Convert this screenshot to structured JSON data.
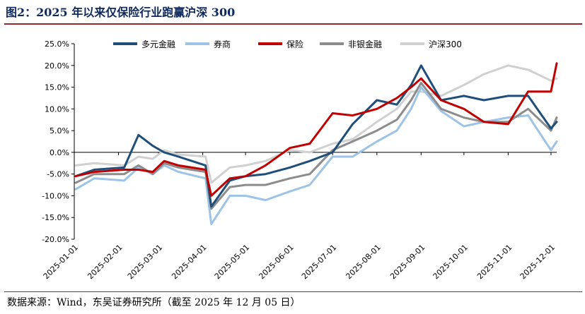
{
  "header": {
    "title": "图2：2025 年以来仅保险行业跑赢沪深 300"
  },
  "footer": {
    "source": "数据来源：Wind，东吴证券研究所（截至 2025 年 12 月 05 日）"
  },
  "chart_data": {
    "type": "line",
    "ylim": [
      -20,
      25
    ],
    "yticks": [
      25,
      20,
      15,
      10,
      5,
      0,
      -5,
      -10,
      -15,
      -20
    ],
    "ytick_labels": [
      "25.0%",
      "20.0%",
      "15.0%",
      "10.0%",
      "5.0%",
      "0.0%",
      "-5.0%",
      "-10.0%",
      "-15.0%",
      "-20.0%"
    ],
    "xtick_labels": [
      "2025-01-01",
      "2025-02-01",
      "2025-03-01",
      "2025-04-01",
      "2025-05-01",
      "2025-06-01",
      "2025-07-01",
      "2025-08-01",
      "2025-09-01",
      "2025-10-01",
      "2025-11-01",
      "2025-12-01"
    ],
    "x_range": [
      "2025-01-01",
      "2025-12-05"
    ],
    "x": [
      "2025-01-02",
      "2025-01-15",
      "2025-02-05",
      "2025-02-15",
      "2025-02-25",
      "2025-03-05",
      "2025-03-15",
      "2025-04-03",
      "2025-04-07",
      "2025-04-20",
      "2025-05-01",
      "2025-05-15",
      "2025-06-01",
      "2025-06-15",
      "2025-07-01",
      "2025-07-15",
      "2025-08-01",
      "2025-08-15",
      "2025-08-25",
      "2025-09-01",
      "2025-09-15",
      "2025-10-01",
      "2025-10-15",
      "2025-11-01",
      "2025-11-15",
      "2025-12-01",
      "2025-12-05"
    ],
    "grid": false,
    "legend_position": "top",
    "series": [
      {
        "name": "多元金融",
        "color": "#1f4e79",
        "values": [
          -5.5,
          -4.0,
          -3.5,
          4.0,
          1.5,
          0.0,
          -1.0,
          -3.0,
          -12.5,
          -6.5,
          -5.5,
          -5.0,
          -3.5,
          -2.0,
          0.0,
          6.5,
          12.0,
          11.0,
          15.5,
          20.0,
          12.0,
          13.0,
          12.0,
          13.0,
          13.0,
          5.5,
          7.0
        ]
      },
      {
        "name": "券商",
        "color": "#9dc3e6",
        "values": [
          -8.5,
          -6.0,
          -6.5,
          -3.5,
          -5.0,
          -3.0,
          -4.5,
          -6.0,
          -16.5,
          -10.0,
          -10.0,
          -11.0,
          -9.0,
          -7.5,
          -1.0,
          -1.0,
          2.5,
          5.0,
          10.0,
          15.0,
          9.5,
          6.0,
          7.0,
          8.0,
          8.5,
          0.5,
          2.5
        ]
      },
      {
        "name": "保险",
        "color": "#c00000",
        "values": [
          -5.5,
          -4.5,
          -4.0,
          -4.0,
          -4.5,
          -2.0,
          -3.0,
          -4.0,
          -10.0,
          -6.0,
          -5.5,
          -3.0,
          1.0,
          2.0,
          9.0,
          8.5,
          10.0,
          12.5,
          15.0,
          17.0,
          12.0,
          10.0,
          7.0,
          6.5,
          14.0,
          14.0,
          20.5
        ]
      },
      {
        "name": "非银金融",
        "color": "#8c8c8c",
        "values": [
          -7.0,
          -5.0,
          -5.0,
          -3.0,
          -5.0,
          -2.5,
          -3.5,
          -4.5,
          -13.0,
          -8.0,
          -7.5,
          -7.5,
          -6.0,
          -5.0,
          0.5,
          2.5,
          5.0,
          7.5,
          12.0,
          16.0,
          10.0,
          8.0,
          7.0,
          7.0,
          10.0,
          5.0,
          8.0
        ]
      },
      {
        "name": "沪深300",
        "color": "#d0d0d0",
        "values": [
          -3.0,
          -2.5,
          -3.0,
          -1.0,
          -1.5,
          0.5,
          -0.5,
          -1.0,
          -7.0,
          -3.5,
          -3.0,
          -2.0,
          0.5,
          0.0,
          2.0,
          3.0,
          7.0,
          10.0,
          14.0,
          14.0,
          13.0,
          15.5,
          18.0,
          20.0,
          19.0,
          16.5,
          17.0
        ]
      }
    ]
  }
}
